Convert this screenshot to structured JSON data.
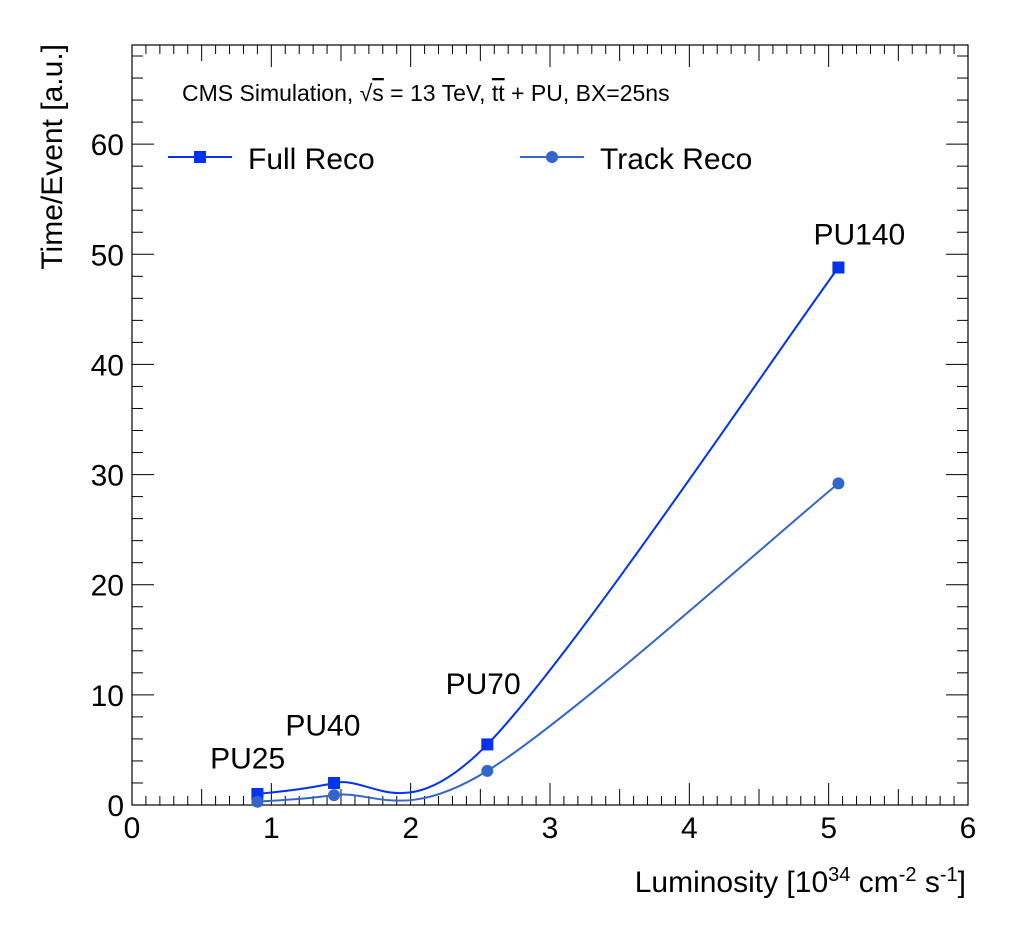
{
  "chart_data": {
    "type": "line",
    "header": {
      "prefix": "CMS Simulation, ",
      "radical": "√",
      "s": "s",
      "energy": " = 13 TeV, ",
      "tt": "tt",
      "suffix": " + PU, BX=25ns"
    },
    "xlabel": {
      "main": "Luminosity [10",
      "exp1": "34",
      "mid1": " cm",
      "exp2": "-2",
      "mid2": " s",
      "exp3": "-1",
      "end": "]"
    },
    "ylabel": "Time/Event [a.u.]",
    "xlim": [
      0,
      6
    ],
    "ylim": [
      0,
      69
    ],
    "x_ticks": [
      "0",
      "1",
      "2",
      "3",
      "4",
      "5",
      "6"
    ],
    "y_ticks": [
      "0",
      "10",
      "20",
      "30",
      "40",
      "50",
      "60"
    ],
    "legend_position": "top",
    "series": [
      {
        "name": "Full Reco",
        "marker": "square",
        "color": "#0033ee",
        "x": [
          0.9,
          1.45,
          2.55,
          5.07
        ],
        "y": [
          1.0,
          2.0,
          5.5,
          48.8
        ]
      },
      {
        "name": "Track Reco",
        "marker": "circle",
        "color": "#3366cc",
        "x": [
          0.9,
          1.45,
          2.55,
          5.07
        ],
        "y": [
          0.3,
          0.9,
          3.1,
          29.2
        ]
      }
    ],
    "annotations": [
      {
        "text": "PU25",
        "x": 0.83,
        "y": 3.3
      },
      {
        "text": "PU40",
        "x": 1.37,
        "y": 6.3
      },
      {
        "text": "PU70",
        "x": 2.52,
        "y": 10.1
      },
      {
        "text": "PU140",
        "x": 5.22,
        "y": 50.9
      }
    ]
  }
}
